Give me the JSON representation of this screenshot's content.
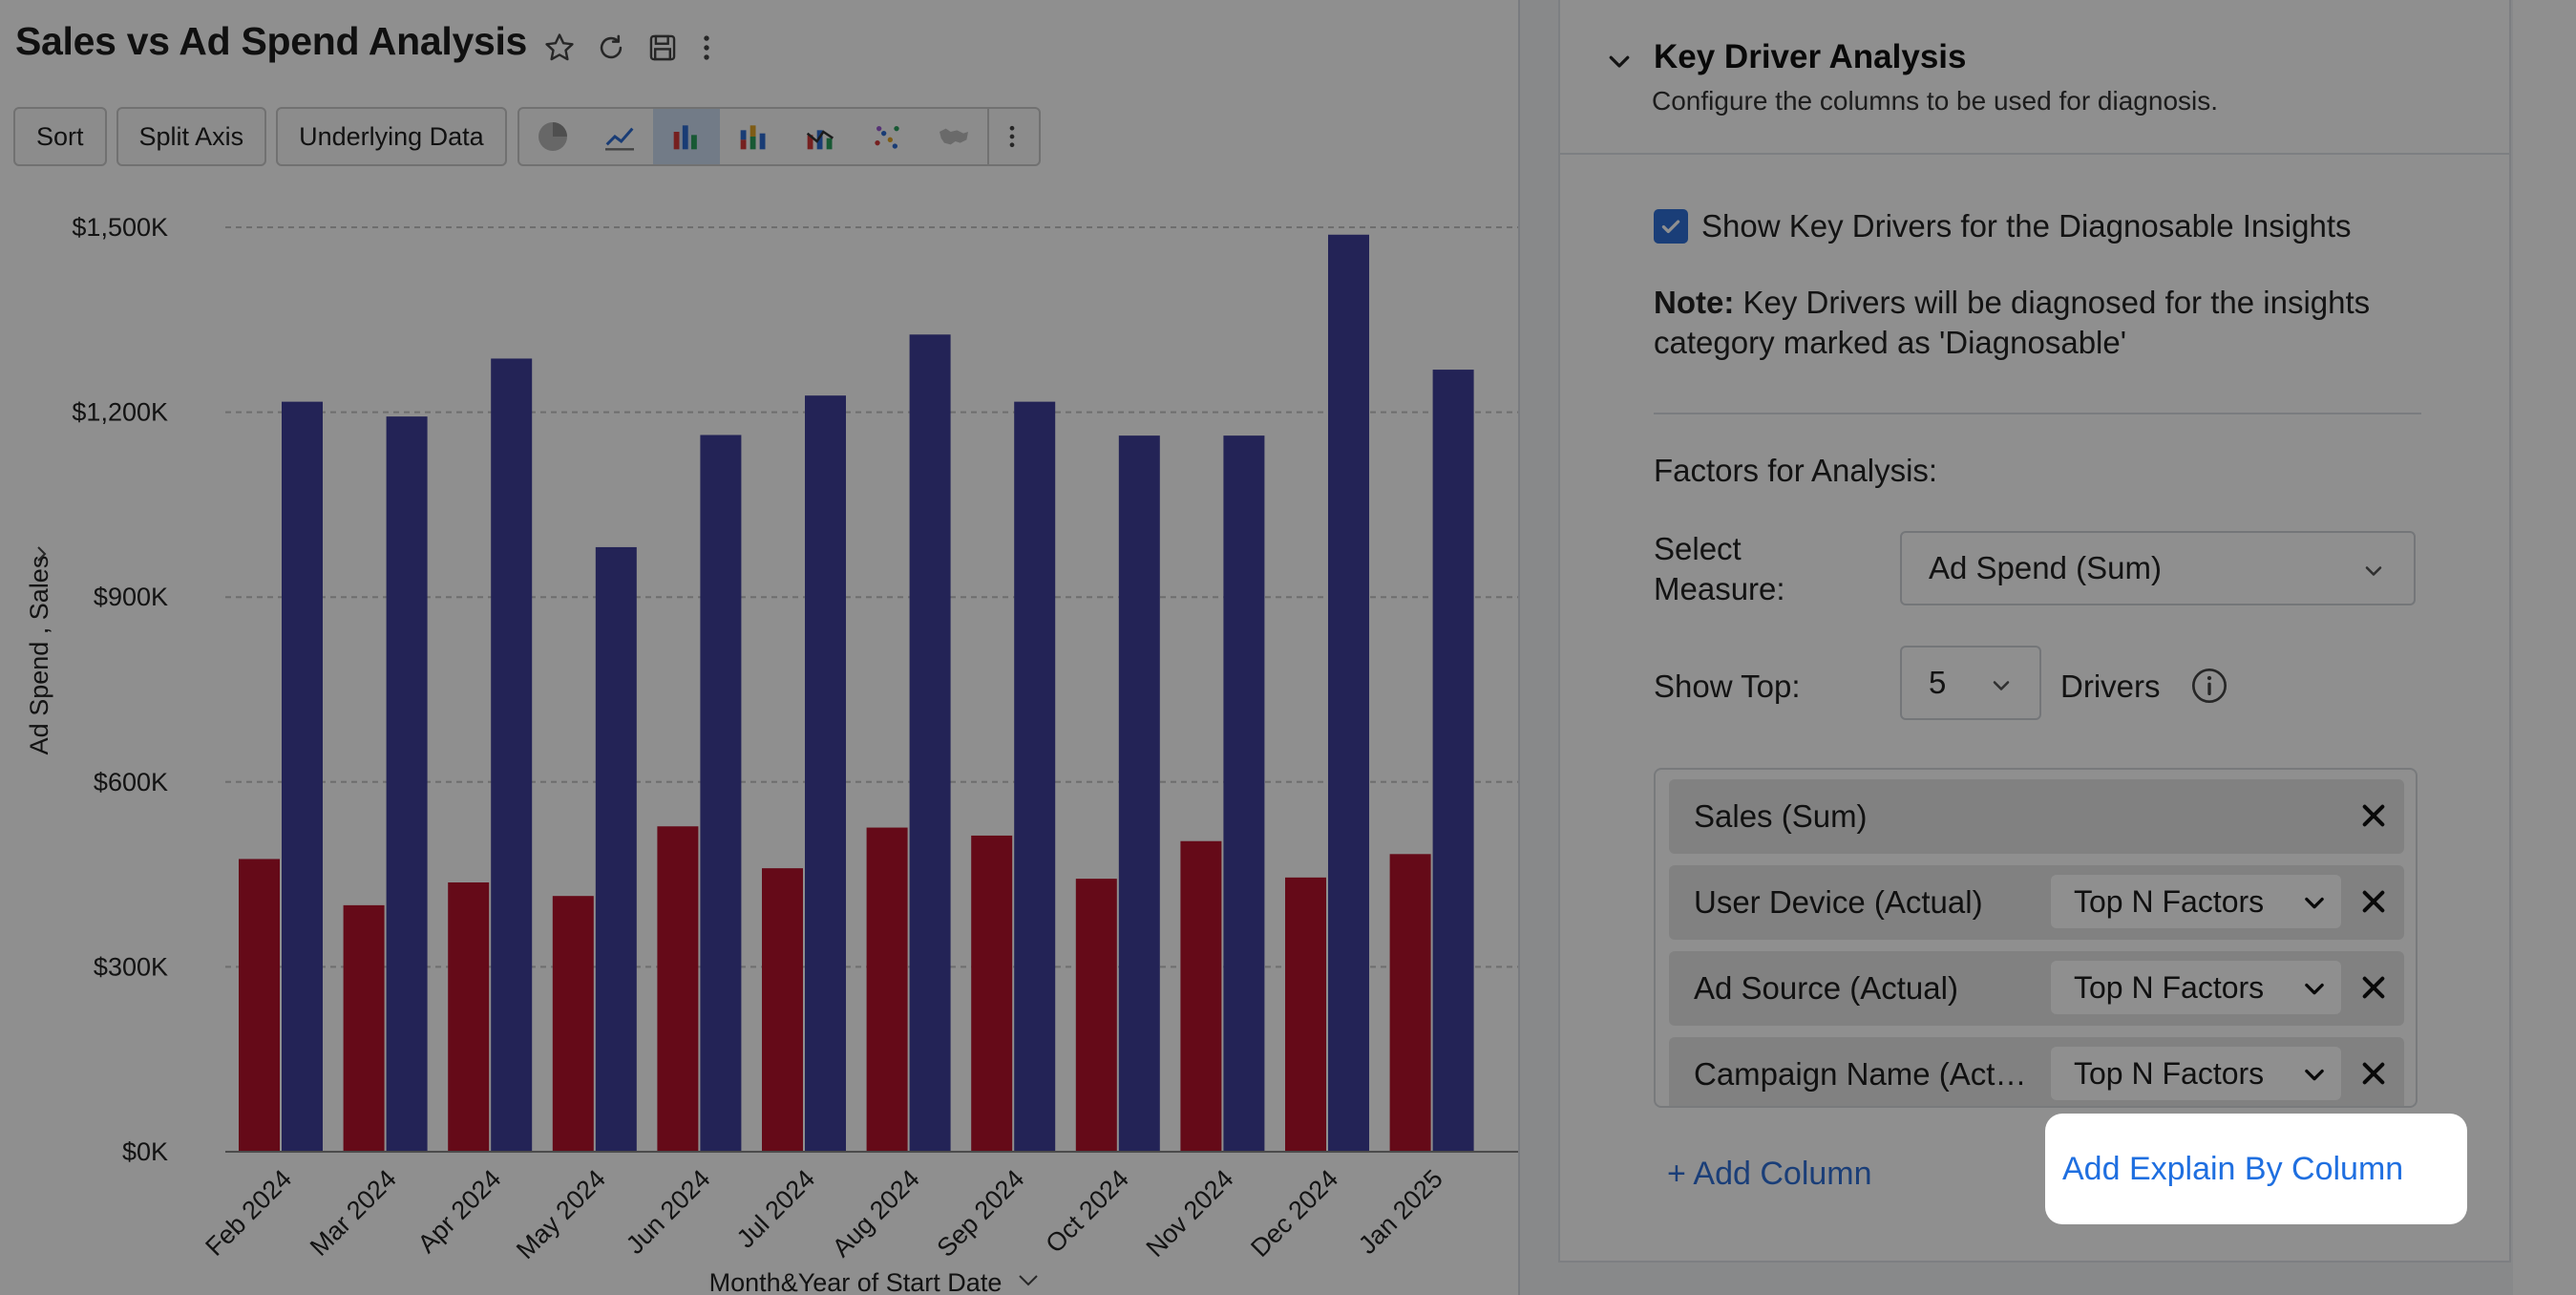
{
  "report": {
    "title": "Sales vs Ad Spend Analysis"
  },
  "title_icons": [
    "star-icon",
    "refresh-icon",
    "save-icon",
    "more-vertical-icon"
  ],
  "toolbar": {
    "sort_label": "Sort",
    "split_axis_label": "Split Axis",
    "underlying_data_label": "Underlying Data",
    "chart_types": [
      "pie",
      "line",
      "bar",
      "stacked-bar",
      "combo",
      "scatter",
      "map"
    ],
    "active_chart_type": "bar"
  },
  "chart_data": {
    "type": "bar",
    "title": "",
    "xlabel": "Month&Year of Start Date",
    "ylabel": "Ad Spend , Sales",
    "ylim": [
      0,
      1500
    ],
    "y_ticks": [
      "$0K",
      "$300K",
      "$600K",
      "$900K",
      "$1,200K",
      "$1,500K"
    ],
    "y_tick_values": [
      0,
      300,
      600,
      900,
      1200,
      1500
    ],
    "categories": [
      "Feb 2024",
      "Mar 2024",
      "Apr 2024",
      "May 2024",
      "Jun 2024",
      "Jul 2024",
      "Aug 2024",
      "Sep 2024",
      "Oct 2024",
      "Nov 2024",
      "Dec 2024",
      "Jan 2025"
    ],
    "series": [
      {
        "color": "#b5132c",
        "values": [
          475,
          400,
          437,
          415,
          528,
          460,
          526,
          513,
          443,
          504,
          445,
          483
        ]
      },
      {
        "color": "#3f3f99",
        "values": [
          1217,
          1193,
          1287,
          981,
          1163,
          1227,
          1326,
          1217,
          1162,
          1162,
          1488,
          1269
        ]
      }
    ],
    "grid": true
  },
  "panel": {
    "section_title": "Key Driver Analysis",
    "section_subtitle": "Configure the columns to be used for diagnosis.",
    "checkbox_label": "Show Key Drivers for the Diagnosable Insights",
    "checkbox_checked": true,
    "note_label": "Note:",
    "note_text": " Key Drivers will be diagnosed for the insights category marked as 'Diagnosable'",
    "factors_title": "Factors for Analysis:",
    "select_measure_label": "Select Measure:",
    "select_measure_value": "Ad Spend (Sum)",
    "show_top_label": "Show Top:",
    "show_top_value": "5",
    "drivers_label": "Drivers",
    "factors": [
      {
        "name": "Sales (Sum)",
        "mode": ""
      },
      {
        "name": "User Device (Actual)",
        "mode": "Top N Factors"
      },
      {
        "name": "Ad Source (Actual)",
        "mode": "Top N Factors"
      },
      {
        "name": "Campaign Name (Act…",
        "mode": "Top N Factors"
      }
    ],
    "add_column_label": "+ Add Column",
    "add_explain_label": "Add Explain By Column"
  }
}
